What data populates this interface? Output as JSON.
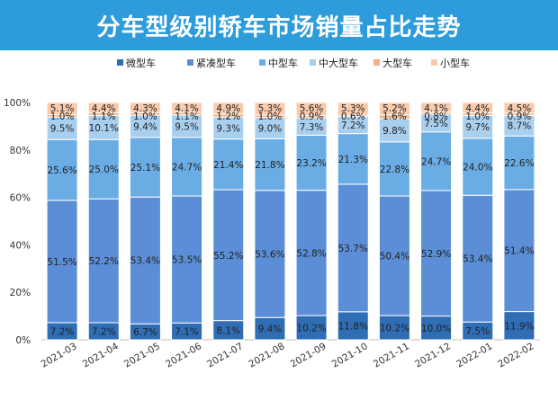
{
  "title": "分车型级别轿车市场销量占比走势",
  "chart_data": {
    "type": "bar",
    "stacked": true,
    "percent": true,
    "categories": [
      "2021-03",
      "2021-04",
      "2021-05",
      "2021-06",
      "2021-07",
      "2021-08",
      "2021-09",
      "2021-10",
      "2021-11",
      "2021-12",
      "2022-01",
      "2022-02"
    ],
    "series": [
      {
        "name": "微型车",
        "color": "#2F6DB5",
        "values": [
          7.2,
          7.2,
          6.7,
          7.1,
          8.1,
          9.4,
          10.2,
          11.8,
          10.2,
          10.0,
          7.5,
          11.9
        ]
      },
      {
        "name": "紧凑型车",
        "color": "#5B8ED6",
        "values": [
          51.5,
          52.2,
          53.4,
          53.5,
          55.2,
          53.6,
          52.8,
          53.7,
          50.4,
          52.9,
          53.4,
          51.4
        ]
      },
      {
        "name": "中型车",
        "color": "#6AADE4",
        "values": [
          25.6,
          25.0,
          25.1,
          24.7,
          21.4,
          21.8,
          23.2,
          21.3,
          22.8,
          24.7,
          24.0,
          22.6
        ]
      },
      {
        "name": "中大型车",
        "color": "#A9CFEF",
        "values": [
          9.5,
          10.1,
          9.4,
          9.5,
          9.3,
          9.0,
          7.3,
          7.2,
          9.8,
          7.5,
          9.7,
          8.7
        ]
      },
      {
        "name": "大型车",
        "color": "#F4B183",
        "values": [
          1.0,
          1.1,
          1.0,
          1.1,
          1.2,
          1.0,
          0.9,
          0.6,
          1.6,
          0.8,
          1.0,
          0.9
        ]
      },
      {
        "name": "小型车",
        "color": "#F8CBAD",
        "values": [
          5.1,
          4.4,
          4.3,
          4.1,
          4.9,
          5.3,
          5.6,
          5.3,
          5.2,
          4.1,
          4.4,
          4.5
        ]
      }
    ],
    "ylim": [
      0,
      100
    ],
    "yticks": [
      "0%",
      "20%",
      "40%",
      "60%",
      "80%",
      "100%"
    ],
    "legend_position": "top",
    "grid": false
  }
}
